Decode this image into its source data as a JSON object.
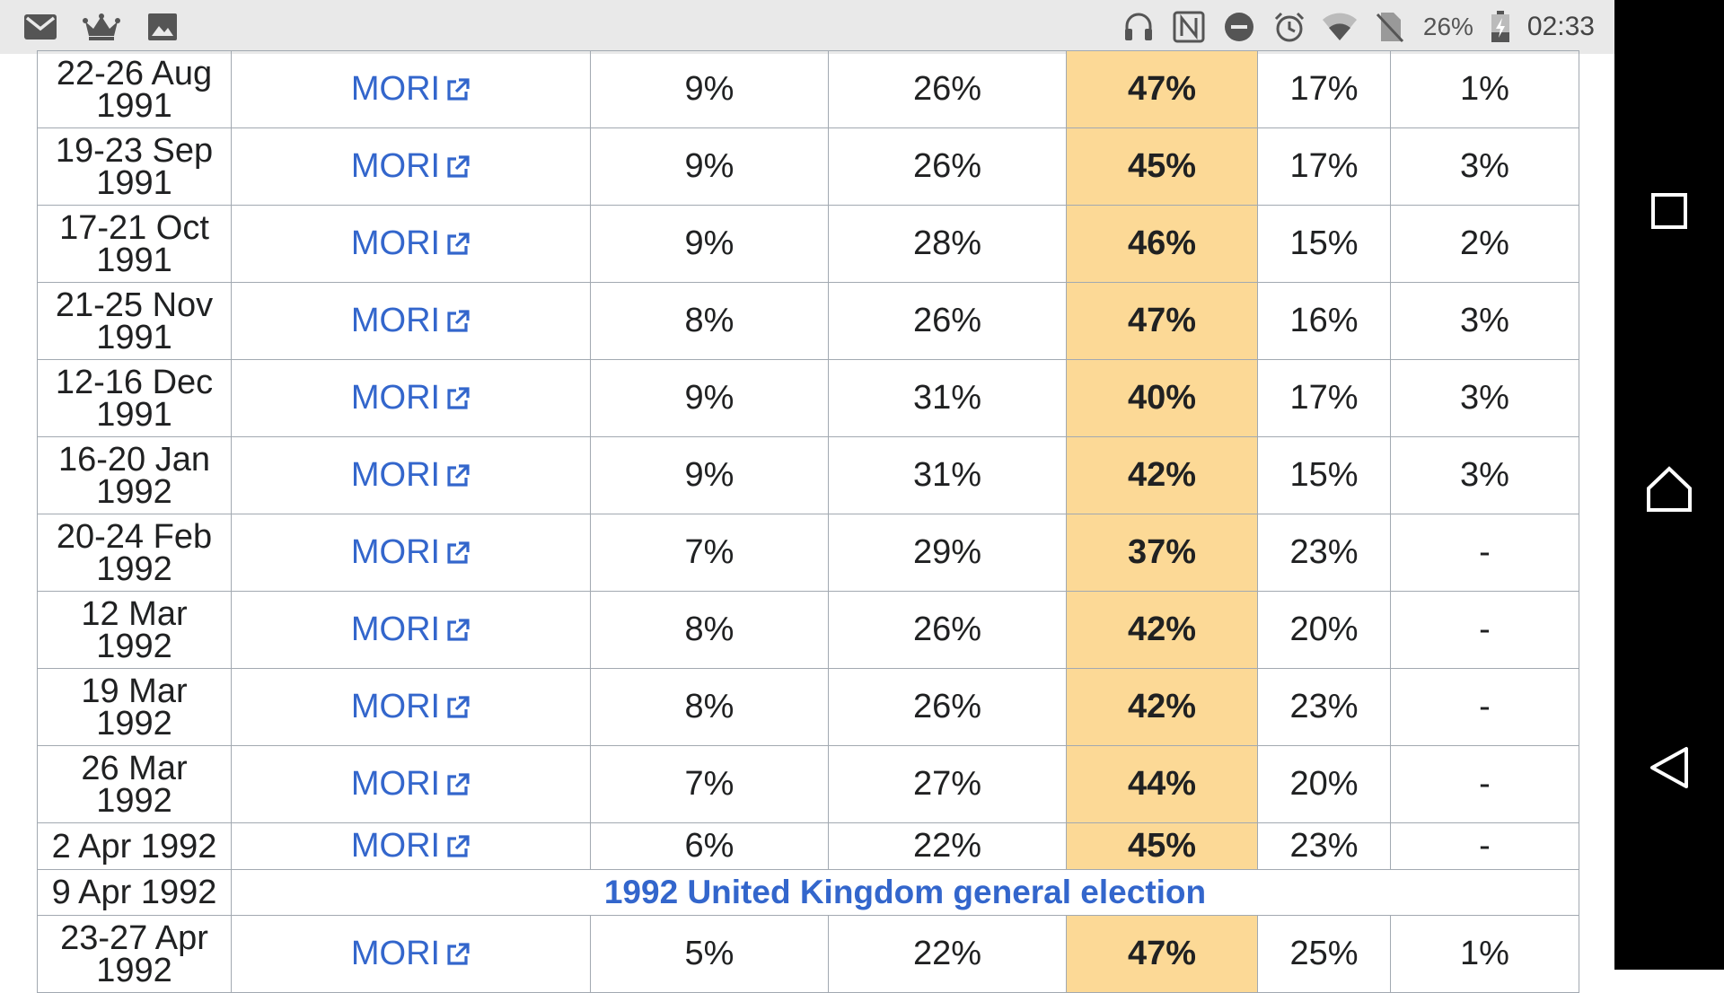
{
  "status_bar": {
    "left_icons": [
      "gmail-icon",
      "crown-icon",
      "image-icon"
    ],
    "right_icons": [
      "headphones-icon",
      "nfc-icon",
      "do-not-disturb-icon",
      "alarm-icon",
      "wifi-icon",
      "no-sim-icon"
    ],
    "battery_percent": "26%",
    "time": "02:33"
  },
  "nav_bar": {
    "buttons": [
      "recents-button",
      "home-button",
      "back-button"
    ]
  },
  "table": {
    "rows": [
      {
        "date_line1": "22-26 Aug",
        "date_line2": "1991",
        "pollster": "MORI",
        "c1": "9%",
        "c2": "26%",
        "c3": "47%",
        "c4": "17%",
        "c5": "1%"
      },
      {
        "date_line1": "19-23 Sep",
        "date_line2": "1991",
        "pollster": "MORI",
        "c1": "9%",
        "c2": "26%",
        "c3": "45%",
        "c4": "17%",
        "c5": "3%"
      },
      {
        "date_line1": "17-21 Oct",
        "date_line2": "1991",
        "pollster": "MORI",
        "c1": "9%",
        "c2": "28%",
        "c3": "46%",
        "c4": "15%",
        "c5": "2%"
      },
      {
        "date_line1": "21-25 Nov",
        "date_line2": "1991",
        "pollster": "MORI",
        "c1": "8%",
        "c2": "26%",
        "c3": "47%",
        "c4": "16%",
        "c5": "3%"
      },
      {
        "date_line1": "12-16 Dec",
        "date_line2": "1991",
        "pollster": "MORI",
        "c1": "9%",
        "c2": "31%",
        "c3": "40%",
        "c4": "17%",
        "c5": "3%"
      },
      {
        "date_line1": "16-20 Jan",
        "date_line2": "1992",
        "pollster": "MORI",
        "c1": "9%",
        "c2": "31%",
        "c3": "42%",
        "c4": "15%",
        "c5": "3%"
      },
      {
        "date_line1": "20-24 Feb",
        "date_line2": "1992",
        "pollster": "MORI",
        "c1": "7%",
        "c2": "29%",
        "c3": "37%",
        "c4": "23%",
        "c5": "-"
      },
      {
        "date_line1": "12 Mar",
        "date_line2": "1992",
        "pollster": "MORI",
        "c1": "8%",
        "c2": "26%",
        "c3": "42%",
        "c4": "20%",
        "c5": "-"
      },
      {
        "date_line1": "19 Mar",
        "date_line2": "1992",
        "pollster": "MORI",
        "c1": "8%",
        "c2": "26%",
        "c3": "42%",
        "c4": "23%",
        "c5": "-"
      },
      {
        "date_line1": "26 Mar",
        "date_line2": "1992",
        "pollster": "MORI",
        "c1": "7%",
        "c2": "27%",
        "c3": "44%",
        "c4": "20%",
        "c5": "-"
      },
      {
        "date_line1": "2 Apr 1992",
        "date_line2": "",
        "pollster": "MORI",
        "c1": "6%",
        "c2": "22%",
        "c3": "45%",
        "c4": "23%",
        "c5": "-"
      }
    ],
    "election_row": {
      "date": "9 Apr 1992",
      "label": "1992 United Kingdom general election"
    },
    "last_row": {
      "date_line1": "23-27 Apr",
      "date_line2": "1992",
      "pollster": "MORI",
      "c1": "5%",
      "c2": "22%",
      "c3": "47%",
      "c4": "25%",
      "c5": "1%"
    },
    "lead_color": "#fcd996",
    "link_color": "#3366cc"
  }
}
